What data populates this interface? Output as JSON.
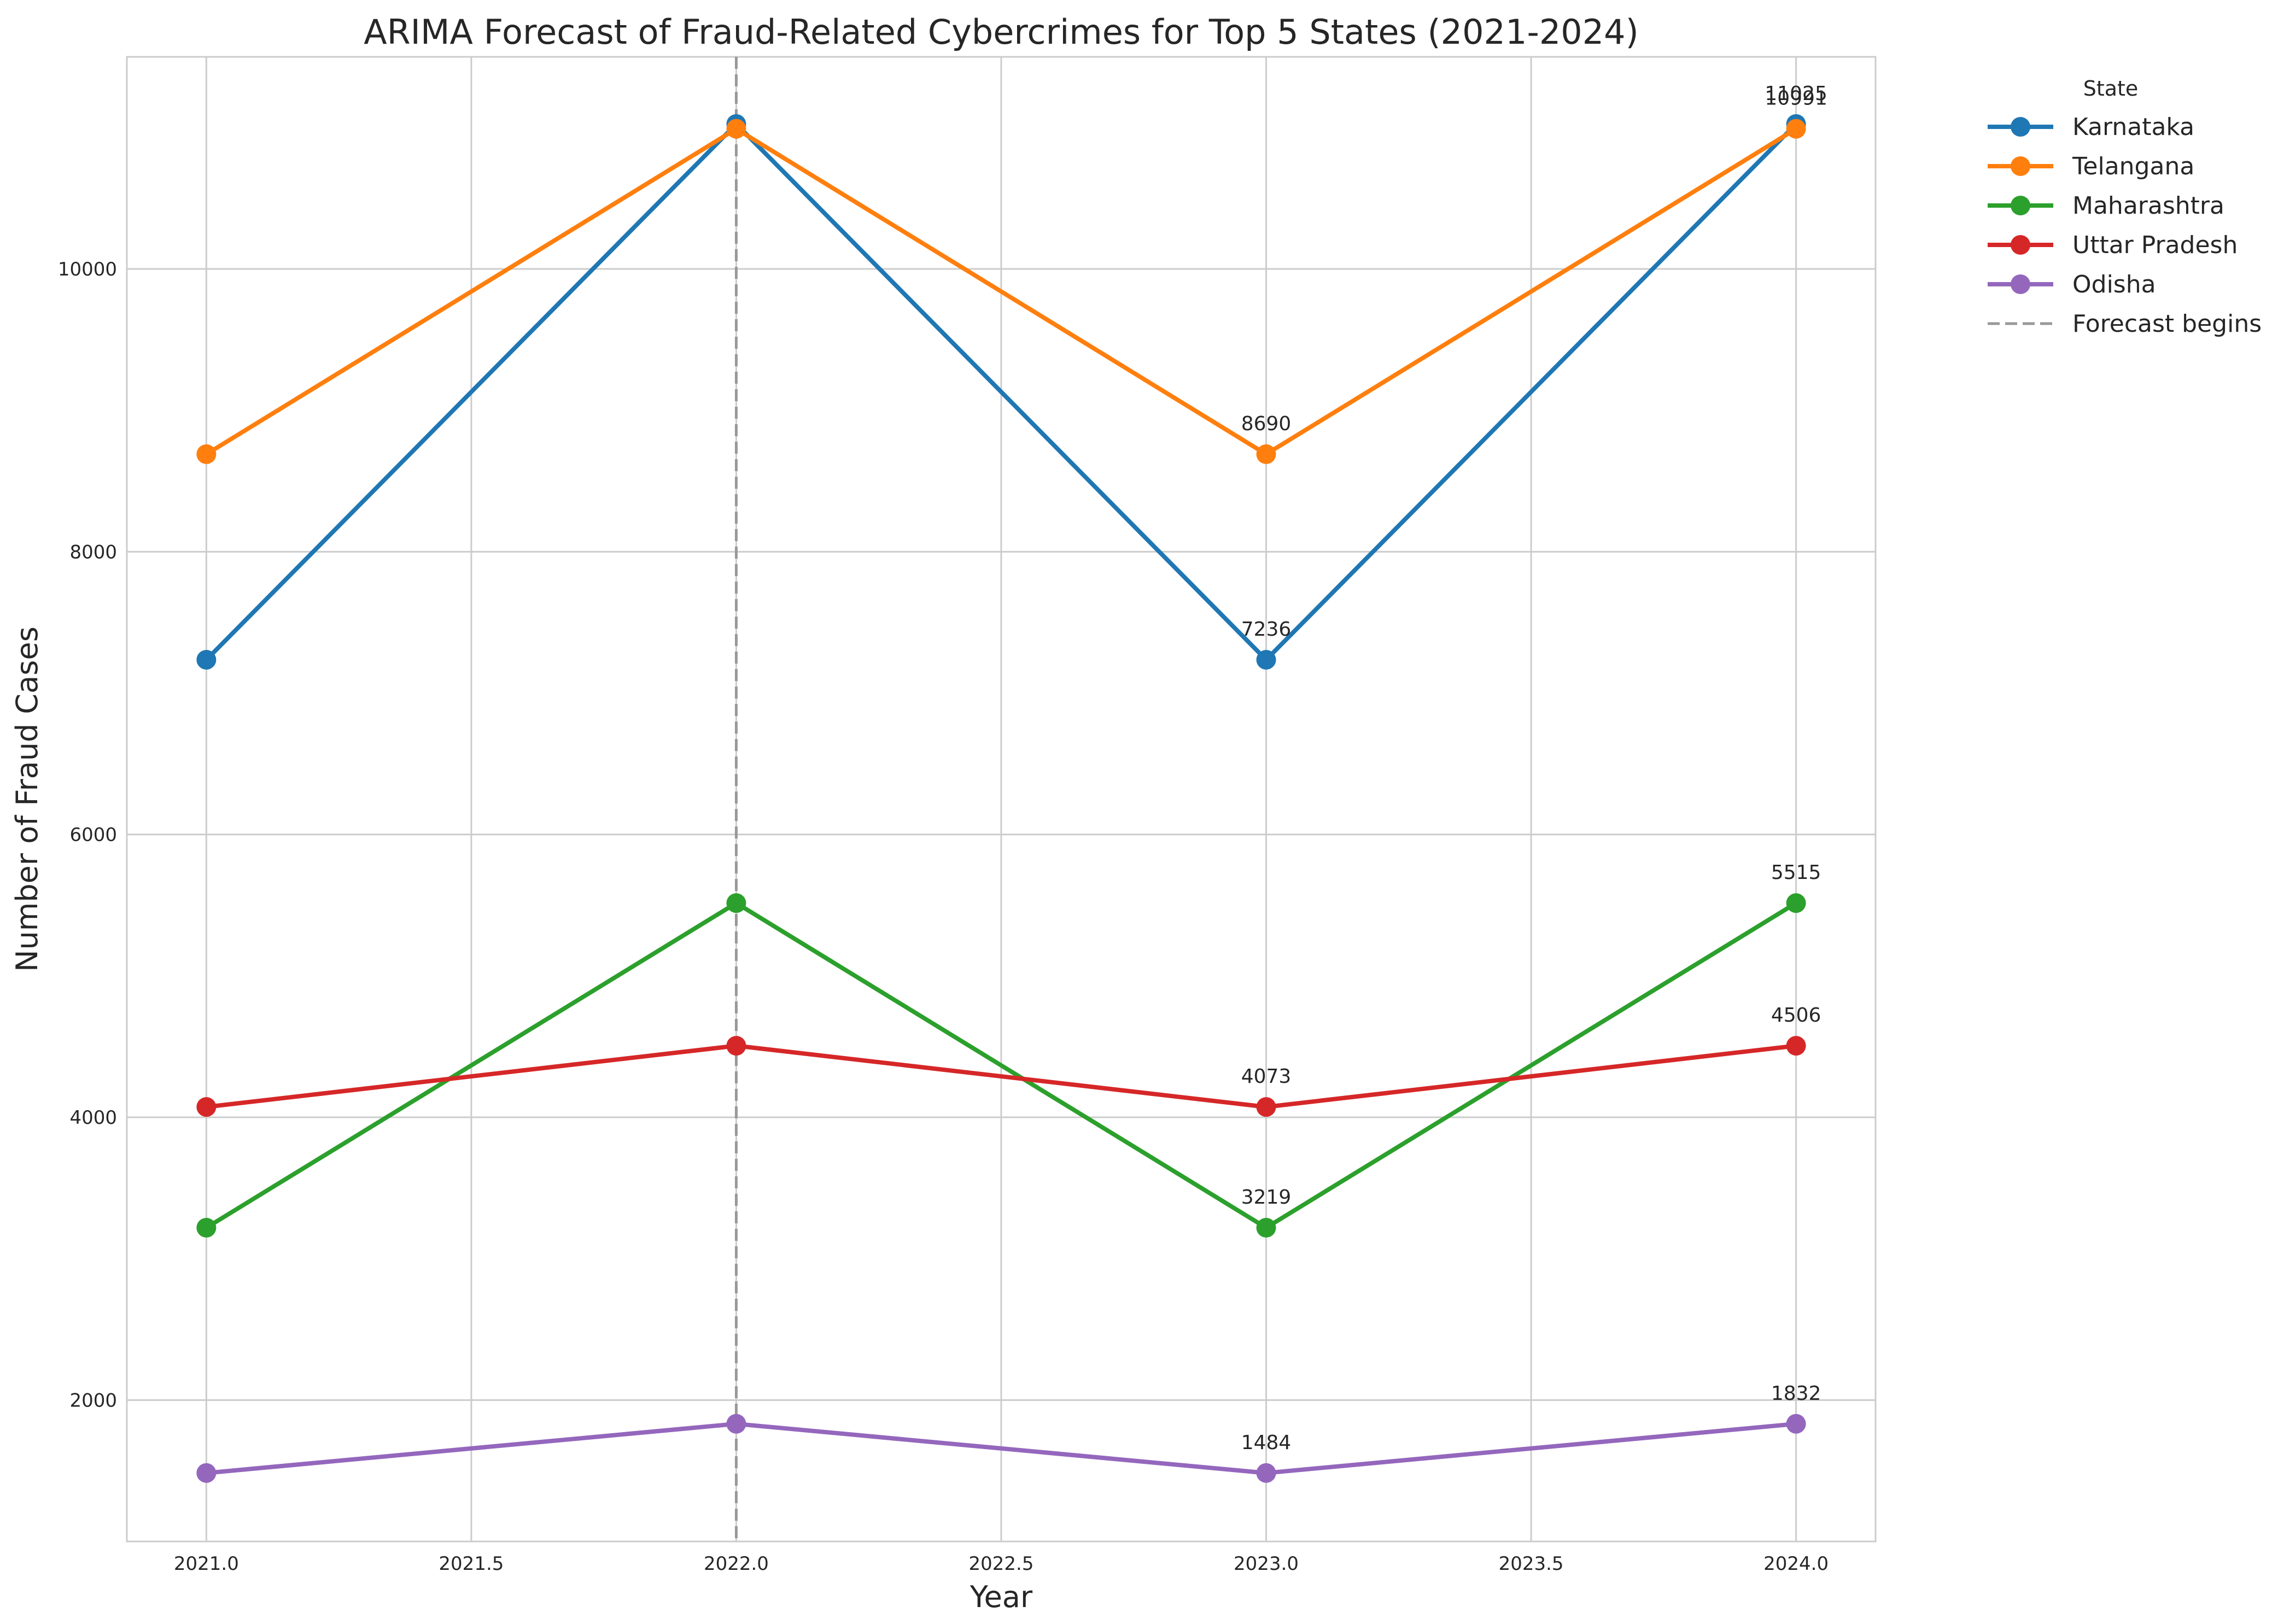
{
  "chart_data": {
    "type": "line",
    "title": "ARIMA Forecast of Fraud-Related Cybercrimes for Top 5 States (2021-2024)",
    "xlabel": "Year",
    "ylabel": "Number of Fraud Cases",
    "xlim": [
      2020.85,
      2024.15
    ],
    "ylim": [
      1000,
      11500
    ],
    "x_ticks": [
      2021.0,
      2021.5,
      2022.0,
      2022.5,
      2023.0,
      2023.5,
      2024.0
    ],
    "x_tick_labels": [
      "2021.0",
      "2021.5",
      "2022.0",
      "2022.5",
      "2023.0",
      "2023.5",
      "2024.0"
    ],
    "y_ticks": [
      2000,
      4000,
      6000,
      8000,
      10000
    ],
    "y_tick_labels": [
      "2000",
      "4000",
      "6000",
      "8000",
      "10000"
    ],
    "grid": true,
    "legend_title": "State",
    "legend_position": "outside-top-right",
    "forecast_line": {
      "x": 2022.0,
      "label": "Forecast begins",
      "color": "#999999"
    },
    "x": [
      2021,
      2022,
      2023,
      2024
    ],
    "series": [
      {
        "name": "Karnataka",
        "color": "#1f77b4",
        "values": [
          7236,
          11025,
          7236,
          11025
        ],
        "labels": [
          null,
          null,
          "7236",
          "11025"
        ]
      },
      {
        "name": "Telangana",
        "color": "#ff7f0e",
        "values": [
          8690,
          10991,
          8690,
          10991
        ],
        "labels": [
          null,
          null,
          "8690",
          "10991"
        ]
      },
      {
        "name": "Maharashtra",
        "color": "#2ca02c",
        "values": [
          3219,
          5515,
          3219,
          5515
        ],
        "labels": [
          null,
          null,
          "3219",
          "5515"
        ]
      },
      {
        "name": "Uttar Pradesh",
        "color": "#d62728",
        "values": [
          4073,
          4506,
          4073,
          4506
        ],
        "labels": [
          null,
          null,
          "4073",
          "4506"
        ]
      },
      {
        "name": "Odisha",
        "color": "#9467bd",
        "values": [
          1484,
          1832,
          1484,
          1832
        ],
        "labels": [
          null,
          null,
          "1484",
          "1832"
        ]
      }
    ]
  }
}
